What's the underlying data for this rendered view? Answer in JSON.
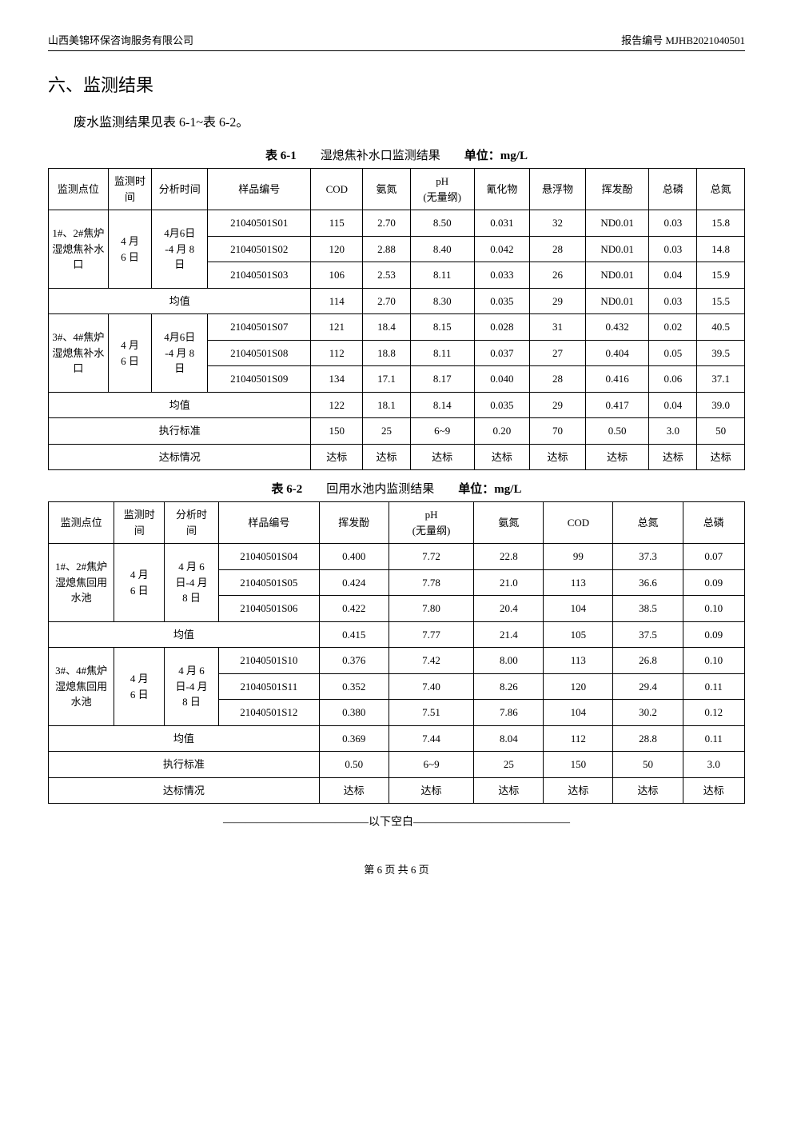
{
  "header": {
    "company": "山西美锦环保咨询服务有限公司",
    "reportNo": "报告编号 MJHB2021040501"
  },
  "sectionTitle": "六、监测结果",
  "intro": "废水监测结果见表 6-1~表 6-2。",
  "table1": {
    "caption": {
      "num": "表 6-1",
      "name": "湿熄焦补水口监测结果",
      "unit": "单位：mg/L"
    },
    "headers": {
      "point": "监测点位",
      "mtime": "监测时间",
      "atime": "分析时间",
      "sample": "样品编号",
      "cod": "COD",
      "nh": "氨氮",
      "ph": "pH\n(无量纲)",
      "cn": "氰化物",
      "ss": "悬浮物",
      "vp": "挥发酚",
      "tp": "总磷",
      "tn": "总氮"
    },
    "group1": {
      "point": "1#、2#焦炉湿熄焦补水口",
      "mtime": "4 月\n6 日",
      "atime": "4月6日\n-4 月 8\n日",
      "rows": [
        {
          "sample": "21040501S01",
          "cod": "115",
          "nh": "2.70",
          "ph": "8.50",
          "cn": "0.031",
          "ss": "32",
          "vp": "ND0.01",
          "tp": "0.03",
          "tn": "15.8"
        },
        {
          "sample": "21040501S02",
          "cod": "120",
          "nh": "2.88",
          "ph": "8.40",
          "cn": "0.042",
          "ss": "28",
          "vp": "ND0.01",
          "tp": "0.03",
          "tn": "14.8"
        },
        {
          "sample": "21040501S03",
          "cod": "106",
          "nh": "2.53",
          "ph": "8.11",
          "cn": "0.033",
          "ss": "26",
          "vp": "ND0.01",
          "tp": "0.04",
          "tn": "15.9"
        }
      ],
      "avg": {
        "label": "均值",
        "cod": "114",
        "nh": "2.70",
        "ph": "8.30",
        "cn": "0.035",
        "ss": "29",
        "vp": "ND0.01",
        "tp": "0.03",
        "tn": "15.5"
      }
    },
    "group2": {
      "point": "3#、4#焦炉湿熄焦补水口",
      "mtime": "4 月\n6 日",
      "atime": "4月6日\n-4 月 8\n日",
      "rows": [
        {
          "sample": "21040501S07",
          "cod": "121",
          "nh": "18.4",
          "ph": "8.15",
          "cn": "0.028",
          "ss": "31",
          "vp": "0.432",
          "tp": "0.02",
          "tn": "40.5"
        },
        {
          "sample": "21040501S08",
          "cod": "112",
          "nh": "18.8",
          "ph": "8.11",
          "cn": "0.037",
          "ss": "27",
          "vp": "0.404",
          "tp": "0.05",
          "tn": "39.5"
        },
        {
          "sample": "21040501S09",
          "cod": "134",
          "nh": "17.1",
          "ph": "8.17",
          "cn": "0.040",
          "ss": "28",
          "vp": "0.416",
          "tp": "0.06",
          "tn": "37.1"
        }
      ],
      "avg": {
        "label": "均值",
        "cod": "122",
        "nh": "18.1",
        "ph": "8.14",
        "cn": "0.035",
        "ss": "29",
        "vp": "0.417",
        "tp": "0.04",
        "tn": "39.0"
      }
    },
    "std": {
      "label": "执行标准",
      "cod": "150",
      "nh": "25",
      "ph": "6~9",
      "cn": "0.20",
      "ss": "70",
      "vp": "0.50",
      "tp": "3.0",
      "tn": "50"
    },
    "res": {
      "label": "达标情况",
      "cod": "达标",
      "nh": "达标",
      "ph": "达标",
      "cn": "达标",
      "ss": "达标",
      "vp": "达标",
      "tp": "达标",
      "tn": "达标"
    }
  },
  "table2": {
    "caption": {
      "num": "表 6-2",
      "name": "回用水池内监测结果",
      "unit": "单位：mg/L"
    },
    "headers": {
      "point": "监测点位",
      "mtime": "监测时\n间",
      "atime": "分析时\n间",
      "sample": "样品编号",
      "vp": "挥发酚",
      "ph": "pH\n(无量纲)",
      "nh": "氨氮",
      "cod": "COD",
      "tn": "总氮",
      "tp": "总磷"
    },
    "group1": {
      "point": "1#、2#焦炉湿熄焦回用水池",
      "mtime": "4 月\n6 日",
      "atime": "4 月 6\n日-4 月\n8 日",
      "rows": [
        {
          "sample": "21040501S04",
          "vp": "0.400",
          "ph": "7.72",
          "nh": "22.8",
          "cod": "99",
          "tn": "37.3",
          "tp": "0.07"
        },
        {
          "sample": "21040501S05",
          "vp": "0.424",
          "ph": "7.78",
          "nh": "21.0",
          "cod": "113",
          "tn": "36.6",
          "tp": "0.09"
        },
        {
          "sample": "21040501S06",
          "vp": "0.422",
          "ph": "7.80",
          "nh": "20.4",
          "cod": "104",
          "tn": "38.5",
          "tp": "0.10"
        }
      ],
      "avg": {
        "label": "均值",
        "vp": "0.415",
        "ph": "7.77",
        "nh": "21.4",
        "cod": "105",
        "tn": "37.5",
        "tp": "0.09"
      }
    },
    "group2": {
      "point": "3#、4#焦炉湿熄焦回用水池",
      "mtime": "4 月\n6 日",
      "atime": "4 月 6\n日-4 月\n8 日",
      "rows": [
        {
          "sample": "21040501S10",
          "vp": "0.376",
          "ph": "7.42",
          "nh": "8.00",
          "cod": "113",
          "tn": "26.8",
          "tp": "0.10"
        },
        {
          "sample": "21040501S11",
          "vp": "0.352",
          "ph": "7.40",
          "nh": "8.26",
          "cod": "120",
          "tn": "29.4",
          "tp": "0.11"
        },
        {
          "sample": "21040501S12",
          "vp": "0.380",
          "ph": "7.51",
          "nh": "7.86",
          "cod": "104",
          "tn": "30.2",
          "tp": "0.12"
        }
      ],
      "avg": {
        "label": "均值",
        "vp": "0.369",
        "ph": "7.44",
        "nh": "8.04",
        "cod": "112",
        "tn": "28.8",
        "tp": "0.11"
      }
    },
    "std": {
      "label": "执行标准",
      "vp": "0.50",
      "ph": "6~9",
      "nh": "25",
      "cod": "150",
      "tn": "50",
      "tp": "3.0"
    },
    "res": {
      "label": "达标情况",
      "vp": "达标",
      "ph": "达标",
      "nh": "达标",
      "cod": "达标",
      "tn": "达标",
      "tp": "达标"
    }
  },
  "blankLine": "—————————————以下空白——————————————",
  "footer": "第 6 页 共 6 页"
}
